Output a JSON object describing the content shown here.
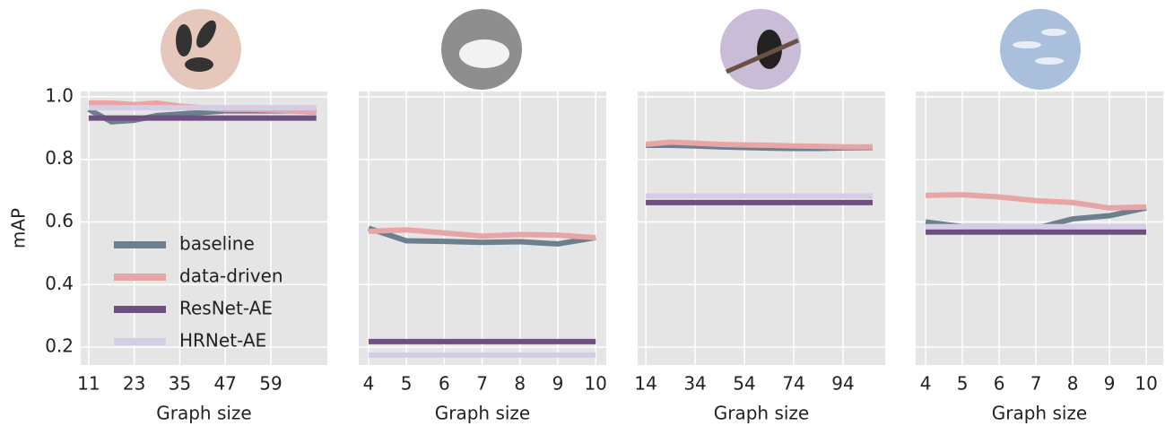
{
  "chart_data": [
    {
      "type": "line",
      "xlabel": "Graph size",
      "ylabel": "mAP",
      "legend": "center left",
      "grid": true,
      "background": "#e5e5e5",
      "x": [
        11,
        17,
        23,
        29,
        35,
        41,
        47,
        53,
        59,
        65,
        71
      ],
      "xlim": [
        8.9,
        73.9
      ],
      "xticks": [
        11,
        23,
        35,
        47,
        59
      ],
      "ylim": [
        0.143,
        1.017
      ],
      "yticks": [
        0.2,
        0.4,
        0.6,
        0.8,
        {
          "value": 1,
          "label": "1.0"
        }
      ],
      "show_ytick_labels": true,
      "series": [
        {
          "name": "baseline",
          "color": "#6b7f8e",
          "values": [
            0.96,
            0.92,
            0.925,
            0.94,
            0.945,
            0.95,
            0.955,
            0.955,
            0.955,
            0.955,
            0.955
          ]
        },
        {
          "name": "data-driven",
          "color": "#e8a5a5",
          "values": [
            0.98,
            0.98,
            0.975,
            0.98,
            0.97,
            0.965,
            0.96,
            0.96,
            0.958,
            0.955,
            0.95
          ]
        },
        {
          "name": "ResNet-AE",
          "color": "#6f4e80",
          "values": [
            0.932,
            0.932,
            0.932,
            0.932,
            0.932,
            0.932,
            0.932,
            0.932,
            0.932,
            0.932,
            0.932
          ]
        },
        {
          "name": "HRNet-AE",
          "color": "#d5cce5",
          "values": [
            0.965,
            0.965,
            0.965,
            0.965,
            0.965,
            0.965,
            0.965,
            0.965,
            0.965,
            0.965,
            0.965
          ]
        }
      ]
    },
    {
      "type": "line",
      "xlabel": "Graph size",
      "grid": true,
      "background": "#e5e5e5",
      "x": [
        4,
        5,
        6,
        7,
        8,
        9,
        10
      ],
      "xlim": [
        3.74,
        10.28
      ],
      "xticks": [
        4,
        5,
        6,
        7,
        8,
        9,
        10
      ],
      "ylim": [
        0.143,
        1.017
      ],
      "yticks": [
        0.2,
        0.4,
        0.6,
        0.8,
        1
      ],
      "show_ytick_labels": false,
      "series": [
        {
          "name": "baseline",
          "color": "#6b7f8e",
          "values": [
            0.58,
            0.54,
            0.538,
            0.535,
            0.537,
            0.53,
            0.55
          ]
        },
        {
          "name": "data-driven",
          "color": "#e8a5a5",
          "values": [
            0.57,
            0.575,
            0.565,
            0.555,
            0.56,
            0.558,
            0.55
          ]
        },
        {
          "name": "ResNet-AE",
          "color": "#6f4e80",
          "values": [
            0.218,
            0.218,
            0.218,
            0.218,
            0.218,
            0.218,
            0.218
          ]
        },
        {
          "name": "HRNet-AE",
          "color": "#d5cce5",
          "values": [
            0.175,
            0.175,
            0.175,
            0.175,
            0.175,
            0.175,
            0.175
          ]
        }
      ]
    },
    {
      "type": "line",
      "xlabel": "Graph size",
      "grid": true,
      "background": "#e5e5e5",
      "x": [
        14,
        24,
        34,
        44,
        54,
        64,
        74,
        84,
        94,
        106
      ],
      "xlim": [
        10.7,
        111.1
      ],
      "xticks": [
        14,
        34,
        54,
        74,
        94
      ],
      "ylim": [
        0.143,
        1.017
      ],
      "yticks": [
        0.2,
        0.4,
        0.6,
        0.8,
        1
      ],
      "show_ytick_labels": false,
      "series": [
        {
          "name": "baseline",
          "color": "#6b7f8e",
          "values": [
            0.845,
            0.845,
            0.843,
            0.84,
            0.838,
            0.836,
            0.835,
            0.835,
            0.837,
            0.838
          ]
        },
        {
          "name": "data-driven",
          "color": "#e8a5a5",
          "values": [
            0.848,
            0.855,
            0.852,
            0.848,
            0.846,
            0.845,
            0.843,
            0.842,
            0.84,
            0.84
          ]
        },
        {
          "name": "ResNet-AE",
          "color": "#6f4e80",
          "values": [
            0.662,
            0.662,
            0.662,
            0.662,
            0.662,
            0.662,
            0.662,
            0.662,
            0.662,
            0.662
          ]
        },
        {
          "name": "HRNet-AE",
          "color": "#d5cce5",
          "values": [
            0.683,
            0.683,
            0.683,
            0.683,
            0.683,
            0.683,
            0.683,
            0.683,
            0.683,
            0.683
          ]
        }
      ]
    },
    {
      "type": "line",
      "xlabel": "Graph size",
      "grid": true,
      "background": "#e5e5e5",
      "x": [
        4,
        5,
        6,
        7,
        8,
        9,
        10
      ],
      "xlim": [
        3.73,
        10.46
      ],
      "xticks": [
        4,
        5,
        6,
        7,
        8,
        9,
        10
      ],
      "ylim": [
        0.143,
        1.017
      ],
      "yticks": [
        0.2,
        0.4,
        0.6,
        0.8,
        1
      ],
      "show_ytick_labels": false,
      "series": [
        {
          "name": "baseline",
          "color": "#6b7f8e",
          "values": [
            0.6,
            0.585,
            0.585,
            0.58,
            0.61,
            0.62,
            0.645
          ]
        },
        {
          "name": "data-driven",
          "color": "#e8a5a5",
          "values": [
            0.685,
            0.687,
            0.68,
            0.668,
            0.662,
            0.645,
            0.648
          ]
        },
        {
          "name": "ResNet-AE",
          "color": "#6f4e80",
          "values": [
            0.568,
            0.568,
            0.568,
            0.568,
            0.568,
            0.568,
            0.568
          ]
        },
        {
          "name": "HRNet-AE",
          "color": "#d5cce5",
          "values": [
            0.585,
            0.585,
            0.585,
            0.585,
            0.585,
            0.585,
            0.585
          ]
        }
      ]
    }
  ]
}
